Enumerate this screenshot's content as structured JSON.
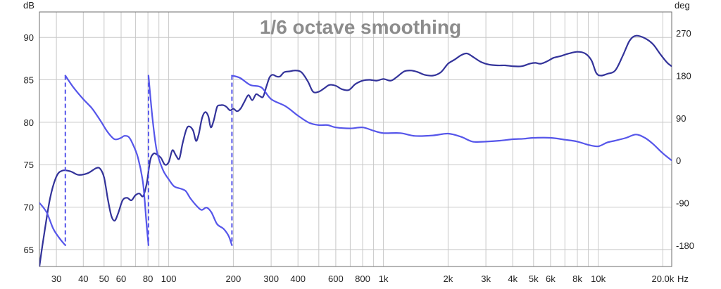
{
  "chart_data": {
    "type": "line",
    "title": "1/6 octave smoothing",
    "xscale": "log",
    "xlim": [
      25,
      22000
    ],
    "y_left": {
      "label": "dB",
      "lim": [
        63,
        93
      ]
    },
    "y_right": {
      "label": "deg",
      "lim": [
        -225,
        315
      ]
    },
    "x_unit": "Hz",
    "grid": true,
    "x_ticks": [
      {
        "v": 30,
        "t": "30"
      },
      {
        "v": 40,
        "t": "40"
      },
      {
        "v": 50,
        "t": "50"
      },
      {
        "v": 60,
        "t": "60"
      },
      {
        "v": 80,
        "t": "80"
      },
      {
        "v": 100,
        "t": "100"
      },
      {
        "v": 200,
        "t": "200"
      },
      {
        "v": 300,
        "t": "300"
      },
      {
        "v": 400,
        "t": "400"
      },
      {
        "v": 600,
        "t": "600"
      },
      {
        "v": 800,
        "t": "800"
      },
      {
        "v": 1000,
        "t": "1k"
      },
      {
        "v": 2000,
        "t": "2k"
      },
      {
        "v": 3000,
        "t": "3k"
      },
      {
        "v": 4000,
        "t": "4k"
      },
      {
        "v": 5000,
        "t": "5k"
      },
      {
        "v": 6000,
        "t": "6k"
      },
      {
        "v": 8000,
        "t": "8k"
      },
      {
        "v": 10000,
        "t": "10k"
      },
      {
        "v": 20000,
        "t": "20.0k"
      }
    ],
    "y_left_ticks": [
      65,
      70,
      75,
      80,
      85,
      90
    ],
    "y_right_ticks": [
      -180,
      -90,
      0,
      90,
      180,
      270
    ],
    "series": [
      {
        "name": "",
        "axis": "left",
        "color": "#33339a",
        "points": [
          [
            25,
            63
          ],
          [
            26,
            66
          ],
          [
            28,
            71
          ],
          [
            30,
            73.6
          ],
          [
            32,
            74.3
          ],
          [
            35,
            74.2
          ],
          [
            38,
            73.8
          ],
          [
            42,
            74
          ],
          [
            46,
            74.6
          ],
          [
            48,
            74.5
          ],
          [
            50,
            73.5
          ],
          [
            52,
            71
          ],
          [
            54,
            69
          ],
          [
            56,
            68.4
          ],
          [
            58,
            69.2
          ],
          [
            61,
            70.8
          ],
          [
            64,
            71.1
          ],
          [
            67,
            70.8
          ],
          [
            70,
            71.4
          ],
          [
            73,
            71.6
          ],
          [
            76,
            71.3
          ],
          [
            79,
            72.8
          ],
          [
            82,
            75.5
          ],
          [
            85,
            76.3
          ],
          [
            88,
            76.2
          ],
          [
            92,
            75.8
          ],
          [
            96,
            75
          ],
          [
            100,
            75.3
          ],
          [
            104,
            76.7
          ],
          [
            108,
            76.1
          ],
          [
            112,
            75.7
          ],
          [
            116,
            77.5
          ],
          [
            121,
            79.2
          ],
          [
            125,
            79.5
          ],
          [
            130,
            79
          ],
          [
            134,
            77.8
          ],
          [
            138,
            78.6
          ],
          [
            143,
            80.5
          ],
          [
            148,
            81.2
          ],
          [
            153,
            80.7
          ],
          [
            157,
            79.4
          ],
          [
            162,
            80.2
          ],
          [
            168,
            81.8
          ],
          [
            174,
            82
          ],
          [
            180,
            82
          ],
          [
            186,
            81.8
          ],
          [
            193,
            81.4
          ],
          [
            200,
            81.6
          ],
          [
            208,
            81.3
          ],
          [
            216,
            81.6
          ],
          [
            225,
            82.4
          ],
          [
            235,
            83.2
          ],
          [
            245,
            82.6
          ],
          [
            255,
            83.3
          ],
          [
            265,
            83.1
          ],
          [
            275,
            83
          ],
          [
            285,
            84.2
          ],
          [
            295,
            85.3
          ],
          [
            305,
            85.6
          ],
          [
            318,
            85.4
          ],
          [
            330,
            85.4
          ],
          [
            345,
            85.9
          ],
          [
            365,
            86
          ],
          [
            390,
            86.1
          ],
          [
            415,
            85.9
          ],
          [
            445,
            84.8
          ],
          [
            470,
            83.6
          ],
          [
            500,
            83.6
          ],
          [
            530,
            84
          ],
          [
            560,
            84.4
          ],
          [
            600,
            84.3
          ],
          [
            640,
            83.9
          ],
          [
            690,
            83.8
          ],
          [
            740,
            84.5
          ],
          [
            800,
            84.9
          ],
          [
            860,
            85
          ],
          [
            930,
            84.9
          ],
          [
            1000,
            85.1
          ],
          [
            1080,
            84.9
          ],
          [
            1150,
            85.3
          ],
          [
            1250,
            86
          ],
          [
            1350,
            86.1
          ],
          [
            1450,
            85.9
          ],
          [
            1550,
            85.6
          ],
          [
            1700,
            85.5
          ],
          [
            1850,
            85.9
          ],
          [
            2000,
            86.9
          ],
          [
            2150,
            87.4
          ],
          [
            2300,
            87.9
          ],
          [
            2450,
            88.1
          ],
          [
            2650,
            87.6
          ],
          [
            2850,
            87.1
          ],
          [
            3100,
            86.8
          ],
          [
            3400,
            86.7
          ],
          [
            3700,
            86.7
          ],
          [
            4000,
            86.6
          ],
          [
            4400,
            86.6
          ],
          [
            4800,
            86.9
          ],
          [
            5100,
            87
          ],
          [
            5400,
            86.9
          ],
          [
            5800,
            87.2
          ],
          [
            6200,
            87.6
          ],
          [
            6700,
            87.8
          ],
          [
            7300,
            88.1
          ],
          [
            8000,
            88.3
          ],
          [
            8700,
            88.1
          ],
          [
            9300,
            87.3
          ],
          [
            9800,
            85.8
          ],
          [
            10300,
            85.5
          ],
          [
            11000,
            85.7
          ],
          [
            12000,
            86.1
          ],
          [
            13000,
            87.8
          ],
          [
            14000,
            89.6
          ],
          [
            15000,
            90.2
          ],
          [
            16500,
            89.9
          ],
          [
            18000,
            89.2
          ],
          [
            19500,
            88
          ],
          [
            21000,
            87
          ],
          [
            22000,
            86.6
          ]
        ]
      },
      {
        "name": "",
        "axis": "right",
        "color": "#5656ea",
        "segments": [
          {
            "points": [
              [
                25,
                -90
              ],
              [
                27,
                -110
              ],
              [
                29,
                -145
              ],
              [
                31,
                -165
              ],
              [
                33,
                -180
              ]
            ]
          },
          {
            "points": [
              [
                33,
                180
              ],
              [
                36,
                155
              ],
              [
                40,
                130
              ],
              [
                44,
                110
              ],
              [
                48,
                85
              ],
              [
                52,
                60
              ],
              [
                56,
                45
              ],
              [
                60,
                48
              ],
              [
                62,
                52
              ],
              [
                65,
                50
              ],
              [
                68,
                35
              ],
              [
                72,
                5
              ],
              [
                76,
                -50
              ],
              [
                79,
                -140
              ],
              [
                80.5,
                -180
              ]
            ]
          },
          {
            "points": [
              [
                80.5,
                180
              ],
              [
                84,
                90
              ],
              [
                88,
                20
              ],
              [
                94,
                -20
              ],
              [
                100,
                -40
              ],
              [
                106,
                -55
              ],
              [
                114,
                -60
              ],
              [
                120,
                -65
              ],
              [
                126,
                -80
              ],
              [
                134,
                -95
              ],
              [
                142,
                -105
              ],
              [
                150,
                -100
              ],
              [
                158,
                -110
              ],
              [
                168,
                -135
              ],
              [
                180,
                -145
              ],
              [
                190,
                -160
              ],
              [
                197,
                -180
              ]
            ]
          },
          {
            "points": [
              [
                197,
                180
              ],
              [
                215,
                175
              ],
              [
                240,
                160
              ],
              [
                270,
                155
              ],
              [
                300,
                130
              ],
              [
                350,
                115
              ],
              [
                400,
                95
              ],
              [
                450,
                80
              ],
              [
                500,
                75
              ],
              [
                550,
                75
              ],
              [
                600,
                70
              ],
              [
                700,
                68
              ],
              [
                800,
                70
              ],
              [
                900,
                63
              ],
              [
                1000,
                58
              ],
              [
                1200,
                58
              ],
              [
                1400,
                52
              ],
              [
                1700,
                53
              ],
              [
                2000,
                57
              ],
              [
                2300,
                50
              ],
              [
                2600,
                40
              ],
              [
                3000,
                40
              ],
              [
                3500,
                42
              ],
              [
                4000,
                45
              ],
              [
                4500,
                46
              ],
              [
                5000,
                48
              ],
              [
                6000,
                48
              ],
              [
                7000,
                44
              ],
              [
                8000,
                40
              ],
              [
                9000,
                33
              ],
              [
                10000,
                30
              ],
              [
                11000,
                38
              ],
              [
                12000,
                42
              ],
              [
                13500,
                48
              ],
              [
                15000,
                55
              ],
              [
                16500,
                48
              ],
              [
                18000,
                35
              ],
              [
                20000,
                15
              ],
              [
                22000,
                0
              ]
            ]
          }
        ],
        "wraps": [
          {
            "x": 33,
            "from": 180,
            "to": -180
          },
          {
            "x": 80.5,
            "from": 180,
            "to": -180
          },
          {
            "x": 197,
            "from": 180,
            "to": -180
          }
        ]
      }
    ]
  }
}
